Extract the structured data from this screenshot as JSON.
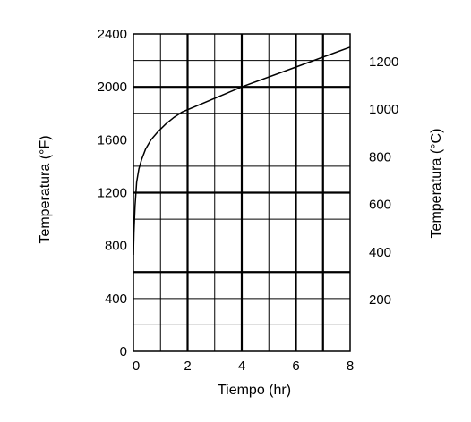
{
  "chart_data": {
    "type": "line",
    "xlabel": "Tiempo (hr)",
    "ylabel_left": "Temperatura (°F)",
    "ylabel_right": "Temperatura (°C)",
    "xlim": [
      0,
      8
    ],
    "ylim_left": [
      0,
      2400
    ],
    "ylim_right": [
      -17.8,
      1315.6
    ],
    "x_ticks": [
      {
        "value": 0,
        "label": "0"
      },
      {
        "value": 2,
        "label": "2"
      },
      {
        "value": 4,
        "label": "4"
      },
      {
        "value": 6,
        "label": "6"
      },
      {
        "value": 8,
        "label": "8"
      }
    ],
    "y_left_ticks": [
      {
        "value": 0,
        "label": "0"
      },
      {
        "value": 400,
        "label": "400"
      },
      {
        "value": 800,
        "label": "800"
      },
      {
        "value": 1200,
        "label": "1200"
      },
      {
        "value": 1600,
        "label": "1600"
      },
      {
        "value": 2000,
        "label": "2000"
      },
      {
        "value": 2400,
        "label": "2400"
      }
    ],
    "y_right_ticks": [
      {
        "value": 200,
        "label": "200"
      },
      {
        "value": 400,
        "label": "400"
      },
      {
        "value": 600,
        "label": "600"
      },
      {
        "value": 800,
        "label": "800"
      },
      {
        "value": 1000,
        "label": "1000"
      },
      {
        "value": 1200,
        "label": "1200"
      }
    ],
    "grid": true,
    "grid_x_minor": [
      1,
      3,
      5,
      7
    ],
    "grid_x_major": [
      2,
      4,
      6,
      7
    ],
    "grid_y_minor": [
      200,
      400,
      1000,
      1400,
      1800,
      2200
    ],
    "grid_y_major": [
      600,
      1200,
      2000
    ],
    "series": [
      {
        "color": "#000000",
        "x": [
          0,
          0.02,
          0.06,
          0.12,
          0.2,
          0.3,
          0.45,
          0.65,
          0.9,
          1.2,
          1.5,
          1.8,
          4.0,
          6.0,
          8.0
        ],
        "y": [
          730,
          900,
          1100,
          1280,
          1380,
          1450,
          1530,
          1600,
          1660,
          1720,
          1770,
          1810,
          2000,
          2150,
          2300
        ]
      }
    ]
  }
}
